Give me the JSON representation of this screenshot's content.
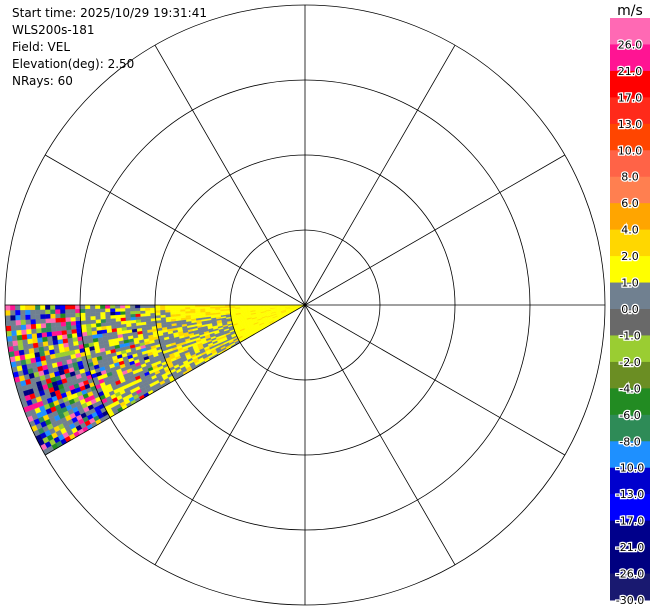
{
  "info": {
    "start_time": "Start time: 2025/10/29 19:31:41",
    "instrument": "WLS200s-181",
    "field": "Field: VEL",
    "elevation": "Elevation(deg): 2.50",
    "nrays": "NRays: 60"
  },
  "chart_data": {
    "type": "heatmap",
    "projection": "polar-ppi",
    "field": "VEL",
    "units": "m/s",
    "elevation_deg": 2.5,
    "n_rays": 60,
    "range_rings": 4,
    "spokes_deg": 30,
    "sector_azimuth_deg": [
      240,
      270
    ],
    "colorbar": {
      "label": "m/s",
      "ticks": [
        "26.0",
        "21.0",
        "17.0",
        "13.0",
        "10.0",
        "8.0",
        "6.0",
        "4.0",
        "2.0",
        "1.0",
        "0.0",
        "-1.0",
        "-2.0",
        "-4.0",
        "-6.0",
        "-8.0",
        "-10.0",
        "-13.0",
        "-17.0",
        "-21.0",
        "-26.0",
        "-30.0"
      ],
      "colors": [
        "#ff69b4",
        "#ff1493",
        "#ff0000",
        "#ff2a1a",
        "#ff4500",
        "#ff6347",
        "#ff7f50",
        "#ffa500",
        "#ffd700",
        "#ffff00",
        "#708090",
        "#696969",
        "#9acd32",
        "#6b8e23",
        "#228b22",
        "#2e8b57",
        "#1e90ff",
        "#0000cd",
        "#0000ff",
        "#00008b",
        "#000080",
        "#191970"
      ]
    }
  }
}
